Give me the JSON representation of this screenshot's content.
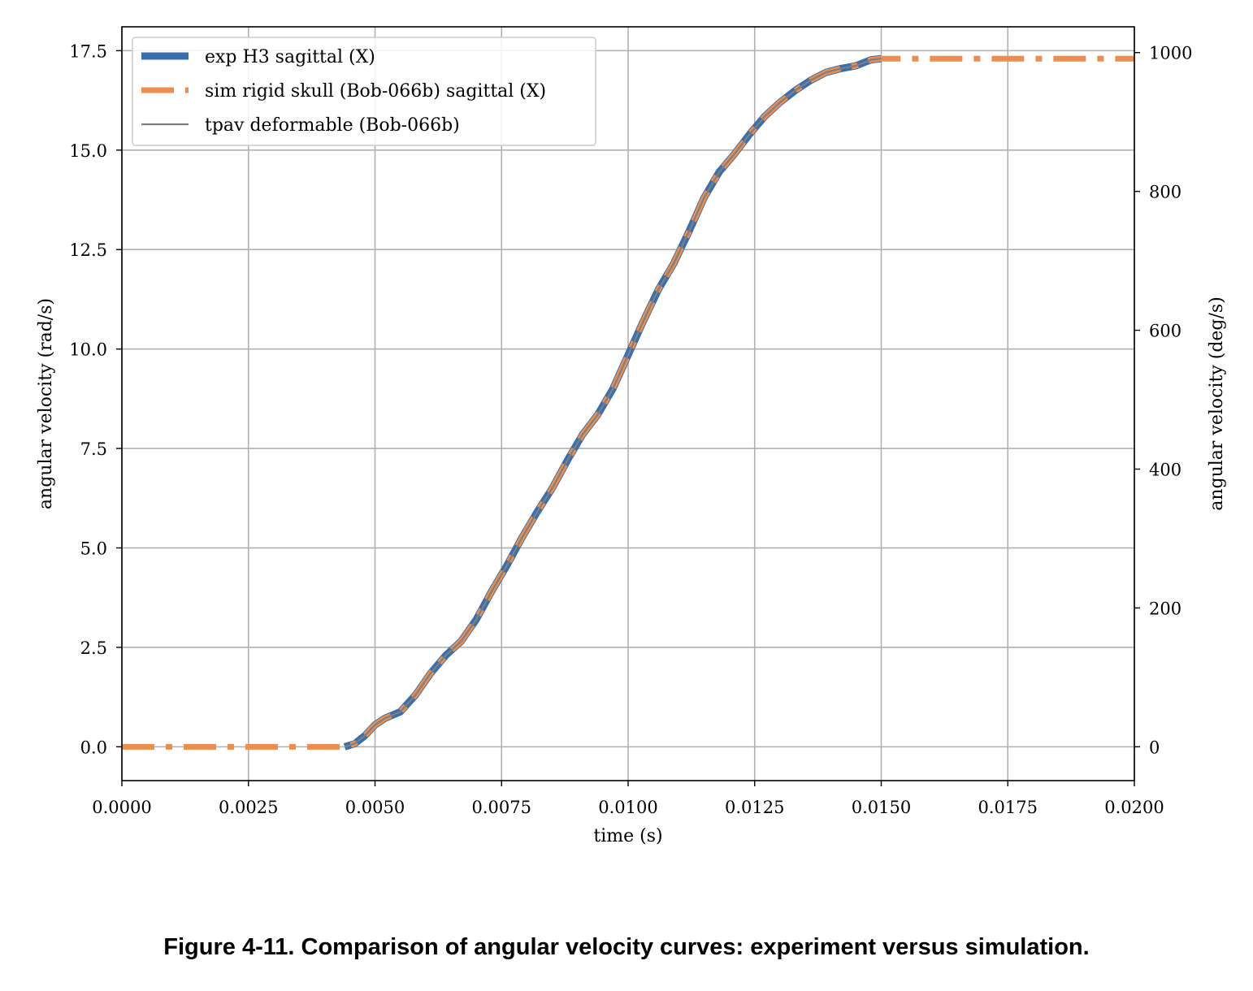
{
  "chart_data": {
    "type": "line",
    "xlabel": "time (s)",
    "ylabel": "angular velocity (rad/s)",
    "ylabel_right": "angular velocity (deg/s)",
    "xlim": [
      0.0,
      0.02
    ],
    "ylim": [
      -0.85,
      18.1
    ],
    "ylim_right_deg": [
      -48.7,
      1037.1
    ],
    "grid": true,
    "legend_position": "top-left",
    "x_ticks": [
      "0.0000",
      "0.0025",
      "0.0050",
      "0.0075",
      "0.0100",
      "0.0125",
      "0.0150",
      "0.0175",
      "0.0200"
    ],
    "y_ticks": [
      "0.0",
      "2.5",
      "5.0",
      "7.5",
      "10.0",
      "12.5",
      "15.0",
      "17.5"
    ],
    "y_ticks_right": [
      "0",
      "200",
      "400",
      "600",
      "800",
      "1000"
    ],
    "series": [
      {
        "name": "exp H3 sagittal (X)",
        "color": "#3a6fae",
        "style": "solid-thick",
        "x": [
          0.0044,
          0.0046,
          0.0048,
          0.005,
          0.0052,
          0.0055,
          0.0058,
          0.0061,
          0.0064,
          0.0067,
          0.007,
          0.0073,
          0.0076,
          0.0079,
          0.0082,
          0.0085,
          0.0088,
          0.0091,
          0.0094,
          0.0097,
          0.01,
          0.0103,
          0.0106,
          0.0109,
          0.0112,
          0.0115,
          0.0118,
          0.0121,
          0.0124,
          0.0127,
          0.013,
          0.0133,
          0.0136,
          0.0139,
          0.0142,
          0.0145,
          0.0148,
          0.015
        ],
        "y": [
          0.0,
          0.08,
          0.28,
          0.55,
          0.72,
          0.88,
          1.3,
          1.85,
          2.3,
          2.65,
          3.2,
          3.9,
          4.55,
          5.25,
          5.9,
          6.5,
          7.2,
          7.85,
          8.35,
          9.0,
          9.85,
          10.7,
          11.5,
          12.15,
          12.95,
          13.8,
          14.45,
          14.9,
          15.4,
          15.85,
          16.2,
          16.5,
          16.75,
          16.95,
          17.05,
          17.12,
          17.27,
          17.3
        ]
      },
      {
        "name": "sim rigid skull (Bob-066b) sagittal (X)",
        "color": "#ee8e4e",
        "style": "dash-dot",
        "x": [
          0.0,
          0.0044,
          0.0046,
          0.0048,
          0.005,
          0.0052,
          0.0055,
          0.0058,
          0.0061,
          0.0064,
          0.0067,
          0.007,
          0.0073,
          0.0076,
          0.0079,
          0.0082,
          0.0085,
          0.0088,
          0.0091,
          0.0094,
          0.0097,
          0.01,
          0.0103,
          0.0106,
          0.0109,
          0.0112,
          0.0115,
          0.0118,
          0.0121,
          0.0124,
          0.0127,
          0.013,
          0.0133,
          0.0136,
          0.0139,
          0.0142,
          0.0145,
          0.0148,
          0.015,
          0.02
        ],
        "y": [
          0.0,
          0.0,
          0.08,
          0.28,
          0.55,
          0.72,
          0.88,
          1.3,
          1.85,
          2.3,
          2.65,
          3.2,
          3.9,
          4.55,
          5.25,
          5.9,
          6.5,
          7.2,
          7.85,
          8.35,
          9.0,
          9.85,
          10.7,
          11.5,
          12.15,
          12.95,
          13.8,
          14.45,
          14.9,
          15.4,
          15.85,
          16.2,
          16.5,
          16.75,
          16.95,
          17.05,
          17.12,
          17.27,
          17.3,
          17.3
        ]
      },
      {
        "name": "tpav deformable (Bob-066b)",
        "color": "#7f7f7f",
        "style": "solid-thin",
        "x": [
          0.0044,
          0.0046,
          0.0048,
          0.005,
          0.0052,
          0.0055,
          0.0058,
          0.0061,
          0.0064,
          0.0067,
          0.007,
          0.0073,
          0.0076,
          0.0079,
          0.0082,
          0.0085,
          0.0088,
          0.0091,
          0.0094,
          0.0097,
          0.01,
          0.0103,
          0.0106,
          0.0109,
          0.0112,
          0.0115,
          0.0118,
          0.0121,
          0.0124,
          0.0127,
          0.013,
          0.0133,
          0.0136,
          0.0139,
          0.0142,
          0.0145,
          0.0148,
          0.015
        ],
        "y": [
          0.0,
          0.08,
          0.28,
          0.55,
          0.72,
          0.88,
          1.3,
          1.85,
          2.3,
          2.65,
          3.2,
          3.9,
          4.55,
          5.25,
          5.9,
          6.5,
          7.2,
          7.85,
          8.35,
          9.0,
          9.85,
          10.7,
          11.5,
          12.15,
          12.95,
          13.8,
          14.45,
          14.9,
          15.4,
          15.85,
          16.2,
          16.5,
          16.75,
          16.95,
          17.05,
          17.12,
          17.27,
          17.3
        ]
      }
    ]
  },
  "caption": "Figure 4-11. Comparison of angular velocity curves: experiment versus simulation."
}
